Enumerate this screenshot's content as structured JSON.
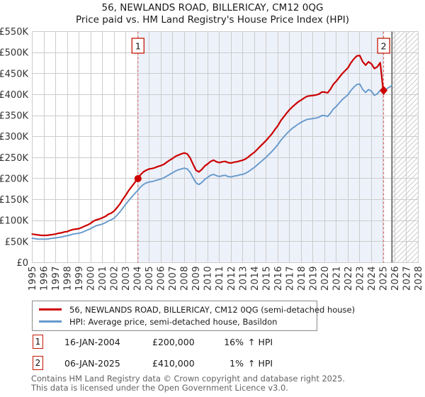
{
  "title": "56, NEWLANDS ROAD, BILLERICAY, CM12 0QG",
  "subtitle": "Price paid vs. HM Land Registry's House Price Index (HPI)",
  "legend": {
    "items": [
      {
        "label": "56, NEWLANDS ROAD, BILLERICAY, CM12 0QG (semi-detached house)",
        "color": "#cc0000"
      },
      {
        "label": "HPI: Average price, semi-detached house, Basildon",
        "color": "#6699cc"
      }
    ]
  },
  "annotations": [
    {
      "num": "1",
      "date": "16-JAN-2004",
      "price": "£200,000",
      "hpi_pct": "16%",
      "hpi_suffix": "↑ HPI"
    },
    {
      "num": "2",
      "date": "06-JAN-2025",
      "price": "£410,000",
      "hpi_pct": "1%",
      "hpi_suffix": "↑ HPI"
    }
  ],
  "footer": {
    "line1": "Contains HM Land Registry data © Crown copyright and database right 2025.",
    "line2": "This data is licensed under the Open Government Licence v3.0."
  },
  "colors": {
    "property_line": "#cc0000",
    "hpi_line": "#6699cc",
    "shade": "#edf1fa",
    "grid": "#cccccc",
    "dashed_event_line": "#dd5555",
    "hatch": "#cccccc",
    "end_of_data_line": "#777777",
    "axis_text": "#333333",
    "marker_box_border": "#c21807"
  },
  "chart_data": {
    "type": "line",
    "title": "56, NEWLANDS ROAD, BILLERICAY, CM12 0QG — Price paid vs. HPI",
    "grid": true,
    "legend_position": "bottom",
    "x_axis": {
      "min": 1995,
      "max": 2028,
      "tick_years": [
        1995,
        1996,
        1997,
        1998,
        1999,
        2000,
        2001,
        2002,
        2003,
        2004,
        2005,
        2006,
        2007,
        2008,
        2009,
        2010,
        2011,
        2012,
        2013,
        2014,
        2015,
        2016,
        2017,
        2018,
        2019,
        2020,
        2021,
        2022,
        2023,
        2024,
        2025,
        2026,
        2027,
        2028
      ]
    },
    "y_axis": {
      "unit": "GBP",
      "min_k": 0,
      "max_k": 550,
      "tick_step_k": 50,
      "tick_labels": [
        "£0",
        "£50K",
        "£100K",
        "£150K",
        "£200K",
        "£250K",
        "£300K",
        "£350K",
        "£400K",
        "£450K",
        "£500K",
        "£550K"
      ]
    },
    "shaded_span_years": [
      2004.04,
      2025.04
    ],
    "end_of_data_year": 2025.75,
    "hatched_span_years": [
      2025.75,
      2028
    ],
    "sale_events": [
      {
        "label": "1",
        "year": 2004.04,
        "date": "16-JAN-2004",
        "price_gbp": 200000,
        "vs_hpi": "16% ↑ HPI",
        "marker": "circle"
      },
      {
        "label": "2",
        "year": 2025.04,
        "date": "06-JAN-2025",
        "price_gbp": 410000,
        "vs_hpi": "1% ↑ HPI",
        "marker": "diamond"
      }
    ],
    "series": [
      {
        "name": "56 Newlands Road (price paid, HPI-indexed)",
        "color": "#cc0000",
        "unit": "GBP thousands",
        "x_start": 1995,
        "x_step": 0.25,
        "values": [
          68,
          67,
          66,
          65,
          65,
          65,
          66,
          67,
          68,
          70,
          71,
          73,
          74,
          77,
          79,
          80,
          81,
          84,
          87,
          90,
          94,
          99,
          102,
          104,
          107,
          110,
          115,
          118,
          123,
          131,
          140,
          151,
          161,
          172,
          181,
          190,
          200,
          209,
          216,
          220,
          223,
          224,
          226,
          229,
          231,
          234,
          239,
          244,
          248,
          253,
          256,
          259,
          261,
          259,
          249,
          234,
          220,
          216,
          222,
          230,
          235,
          241,
          244,
          240,
          238,
          240,
          241,
          238,
          237,
          239,
          240,
          242,
          244,
          247,
          252,
          258,
          263,
          270,
          277,
          284,
          291,
          299,
          307,
          317,
          326,
          338,
          347,
          356,
          364,
          371,
          377,
          383,
          387,
          392,
          396,
          397,
          398,
          399,
          401,
          406,
          406,
          404,
          413,
          425,
          432,
          441,
          450,
          457,
          464,
          476,
          485,
          492,
          493,
          478,
          470,
          478,
          473,
          462,
          466,
          476,
          410
        ]
      },
      {
        "name": "HPI: average price, semi-detached house, Basildon",
        "color": "#6699cc",
        "unit": "GBP thousands",
        "x_start": 1995,
        "x_step": 0.25,
        "values": [
          58,
          57,
          56,
          56,
          56,
          56,
          57,
          58,
          59,
          60,
          61,
          63,
          64,
          66,
          68,
          69,
          70,
          72,
          75,
          78,
          81,
          85,
          88,
          90,
          92,
          95,
          99,
          102,
          106,
          113,
          121,
          130,
          139,
          148,
          156,
          164,
          171,
          180,
          186,
          190,
          192,
          193,
          195,
          197,
          199,
          202,
          206,
          210,
          214,
          218,
          221,
          223,
          225,
          223,
          215,
          202,
          190,
          186,
          191,
          198,
          203,
          208,
          210,
          207,
          205,
          207,
          208,
          205,
          204,
          206,
          207,
          209,
          210,
          213,
          217,
          222,
          227,
          233,
          239,
          245,
          251,
          258,
          265,
          273,
          281,
          291,
          299,
          307,
          314,
          320,
          325,
          330,
          334,
          338,
          341,
          342,
          343,
          344,
          346,
          350,
          350,
          348,
          356,
          366,
          372,
          380,
          388,
          394,
          400,
          410,
          418,
          424,
          425,
          412,
          405,
          412,
          408,
          398,
          402,
          410,
          405,
          413,
          417,
          422
        ]
      }
    ]
  }
}
